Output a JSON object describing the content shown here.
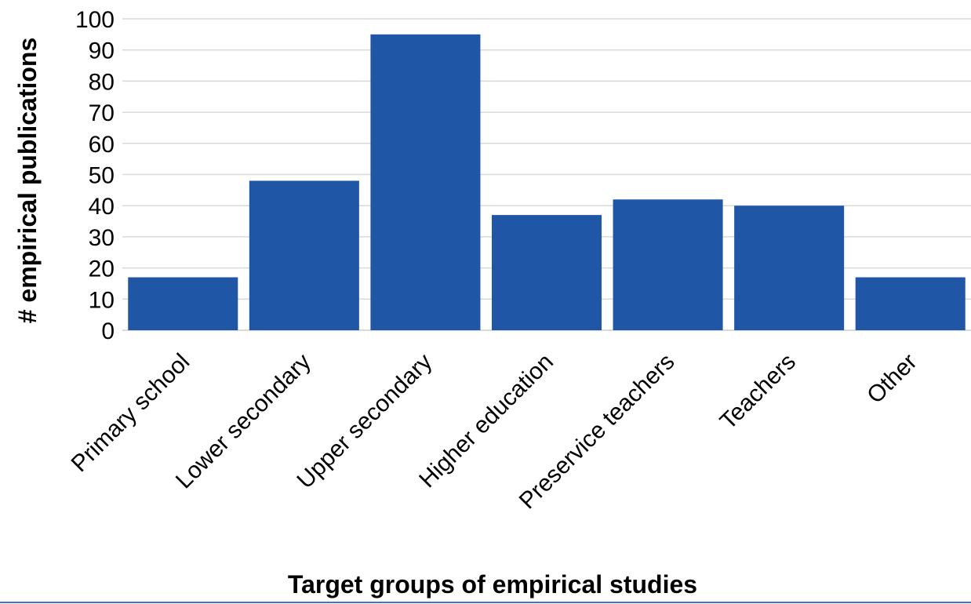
{
  "chart_data": {
    "type": "bar",
    "categories": [
      "Primary school",
      "Lower secondary",
      "Upper secondary",
      "Higher education",
      "Preservice teachers",
      "Teachers",
      "Other"
    ],
    "values": [
      17,
      48,
      95,
      37,
      42,
      40,
      17
    ],
    "xlabel": "Target groups of empirical studies",
    "ylabel": "# empirical publications",
    "ylim": [
      0,
      100
    ],
    "yticks": [
      0,
      10,
      20,
      30,
      40,
      50,
      60,
      70,
      80,
      90,
      100
    ],
    "grid": true,
    "bar_color": "#1f56a6",
    "grid_color": "#d9d9d9",
    "bottom_rule_color": "#4472c4"
  }
}
